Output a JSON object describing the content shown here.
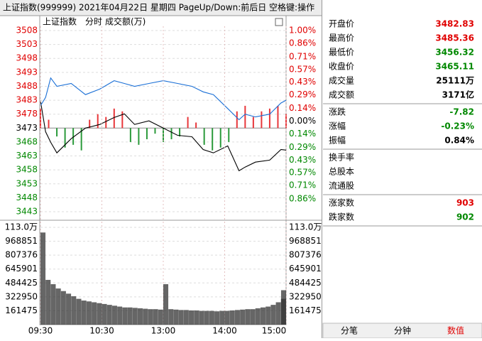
{
  "title_bar": "上证指数(999999)  2021年04月22日 星期四  PageUp/Down:前后日 空格键:操作",
  "chart_data": [
    {
      "type": "line",
      "header": [
        "上证指数",
        "分时",
        "成交额(万)"
      ],
      "x": [
        0,
        5,
        10,
        16,
        30,
        44,
        58,
        72,
        82,
        92,
        106,
        120,
        134,
        148,
        159,
        169,
        183,
        194,
        200,
        210,
        224,
        235,
        240
      ],
      "xlim": [
        0,
        240
      ],
      "series": [
        {
          "color": "#000000",
          "values": [
            3482.8,
            3471.7,
            3467.9,
            3464.1,
            3469.2,
            3473.0,
            3474.3,
            3476.8,
            3478.1,
            3474.3,
            3475.6,
            3473.0,
            3470.4,
            3469.9,
            3465.3,
            3464.1,
            3466.6,
            3457.7,
            3459.0,
            3460.8,
            3461.5,
            3465.3,
            3465.1
          ]
        },
        {
          "color": "#1a6fd6",
          "values": [
            3481.0,
            3484.0,
            3491.0,
            3488.0,
            3489.0,
            3485.0,
            3487.0,
            3490.0,
            3489.0,
            3488.0,
            3489.0,
            3490.0,
            3489.0,
            3488.0,
            3486.0,
            3485.0,
            3480.0,
            3476.0,
            3478.0,
            3477.0,
            3478.0,
            3482.0,
            3483.0
          ]
        }
      ],
      "bar_series": {
        "up_color": "#e8363a",
        "down_color": "#2a9a3a",
        "x": [
          0,
          8,
          16,
          24,
          32,
          40,
          48,
          56,
          64,
          72,
          80,
          88,
          96,
          104,
          112,
          120,
          128,
          136,
          144,
          152,
          160,
          168,
          176,
          184,
          192,
          200,
          208,
          216,
          224,
          232,
          240
        ],
        "values": [
          3480,
          3476,
          3470,
          3466,
          3467,
          3465,
          3476,
          3478,
          3477,
          3480,
          3479,
          3468,
          3467,
          3469,
          3471,
          3468,
          3469,
          3470,
          3477,
          3475,
          3467,
          3465,
          3466,
          3468,
          3479,
          3481,
          3477,
          3479,
          3480,
          3481,
          3478
        ]
      },
      "ylim": [
        3443,
        3508
      ],
      "yticks": [
        3508,
        3503,
        3498,
        3493,
        3488,
        3483,
        3478,
        3473,
        3468,
        3463,
        3458,
        3453,
        3448,
        3443
      ],
      "y2lim": [
        -1,
        1
      ],
      "y2ticks": [
        {
          "value": 1,
          "label": "1.00%"
        },
        {
          "value": 0.86,
          "label": "0.86%"
        },
        {
          "value": 0.71,
          "label": "0.71%"
        },
        {
          "value": 0.57,
          "label": "0.57%"
        },
        {
          "value": 0.43,
          "label": "0.43%"
        },
        {
          "value": 0.29,
          "label": "0.29%"
        },
        {
          "value": 0.14,
          "label": "0.14%"
        },
        {
          "value": 0,
          "label": "0.00%"
        },
        {
          "value": -0.14,
          "label": "0.14%"
        },
        {
          "value": -0.29,
          "label": "0.29%"
        },
        {
          "value": -0.43,
          "label": "0.43%"
        },
        {
          "value": -0.57,
          "label": "0.57%"
        },
        {
          "value": -0.71,
          "label": "0.71%"
        },
        {
          "value": -0.86,
          "label": "0.86%"
        }
      ],
      "up_color": "#e00000",
      "down_color": "#008800"
    },
    {
      "type": "bar",
      "color": "#333333",
      "x": [
        0,
        5,
        10,
        15,
        20,
        25,
        30,
        35,
        40,
        45,
        50,
        55,
        60,
        65,
        70,
        75,
        80,
        85,
        90,
        95,
        100,
        105,
        110,
        115,
        120,
        125,
        130,
        135,
        140,
        145,
        150,
        155,
        160,
        165,
        170,
        175,
        180,
        185,
        190,
        195,
        200,
        205,
        210,
        215,
        220,
        225,
        230,
        235,
        240
      ],
      "values": [
        1070000,
        520000,
        470000,
        420000,
        390000,
        360000,
        330000,
        300000,
        280000,
        270000,
        260000,
        250000,
        240000,
        230000,
        220000,
        210000,
        200000,
        200000,
        195000,
        190000,
        185000,
        180000,
        180000,
        175000,
        470000,
        180000,
        175000,
        170000,
        170000,
        165000,
        165000,
        160000,
        160000,
        160000,
        155000,
        160000,
        160000,
        165000,
        170000,
        175000,
        180000,
        180000,
        190000,
        200000,
        210000,
        230000,
        260000,
        300000,
        400000
      ],
      "xlim": [
        0,
        240
      ],
      "ylim": [
        0,
        1130000
      ],
      "yticks": [
        {
          "value": 1130000,
          "label": "113.0万"
        },
        968851,
        807376,
        645901,
        484425,
        322950,
        161475
      ],
      "xticks": [
        {
          "value": 0,
          "label": "09:30"
        },
        {
          "value": 60,
          "label": "10:30"
        },
        {
          "value": 120,
          "label": "13:00"
        },
        {
          "value": 180,
          "label": "14:00"
        },
        {
          "value": 240,
          "label": "15:00"
        }
      ]
    }
  ],
  "stats": [
    [
      {
        "label": "开盘价",
        "value": "3482.83",
        "color": "#e00000"
      },
      {
        "label": "最高价",
        "value": "3485.36",
        "color": "#e00000"
      },
      {
        "label": "最低价",
        "value": "3456.32",
        "color": "#008800"
      },
      {
        "label": "收盘价",
        "value": "3465.11",
        "color": "#008800"
      },
      {
        "label": "成交量",
        "value": "25111万",
        "color": "#000000"
      },
      {
        "label": "成交额",
        "value": "3171亿",
        "color": "#000000"
      }
    ],
    [
      {
        "label": "涨跌",
        "value": "-7.82",
        "color": "#008800"
      },
      {
        "label": "涨幅",
        "value": "-0.23%",
        "color": "#008800"
      },
      {
        "label": "振幅",
        "value": "0.84%",
        "color": "#000000"
      }
    ],
    [
      {
        "label": "换手率"
      },
      {
        "label": "总股本"
      },
      {
        "label": "流通股"
      }
    ],
    [
      {
        "label": "涨家数",
        "value": "903",
        "color": "#e00000"
      },
      {
        "label": "跌家数",
        "value": "902",
        "color": "#008800"
      }
    ]
  ],
  "tabs": [
    {
      "label": "分笔"
    },
    {
      "label": "分钟"
    },
    {
      "label": "数值",
      "active": true
    }
  ]
}
